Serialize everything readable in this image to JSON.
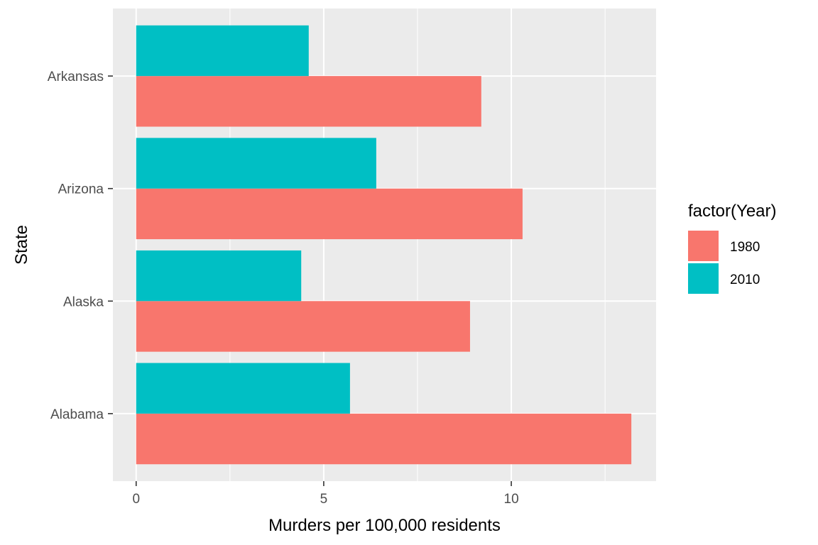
{
  "chart_data": {
    "type": "bar",
    "orientation": "horizontal",
    "categories": [
      "Alabama",
      "Alaska",
      "Arizona",
      "Arkansas"
    ],
    "series": [
      {
        "name": "1980",
        "color": "#F8766D",
        "values": [
          13.2,
          8.9,
          10.3,
          9.2
        ]
      },
      {
        "name": "2010",
        "color": "#00BFC4",
        "values": [
          5.7,
          4.4,
          6.4,
          4.6
        ]
      }
    ],
    "title": "",
    "xlabel": "Murders per 100,000 residents",
    "ylabel": "State",
    "xlim": [
      -0.62,
      13.86
    ],
    "x_ticks": [
      0,
      5,
      10
    ],
    "x_tick_labels": [
      "0",
      "5",
      "10"
    ],
    "grid": true,
    "panel_background": "#EBEBEB",
    "legend": {
      "title": "factor(Year)",
      "position": "right"
    }
  }
}
